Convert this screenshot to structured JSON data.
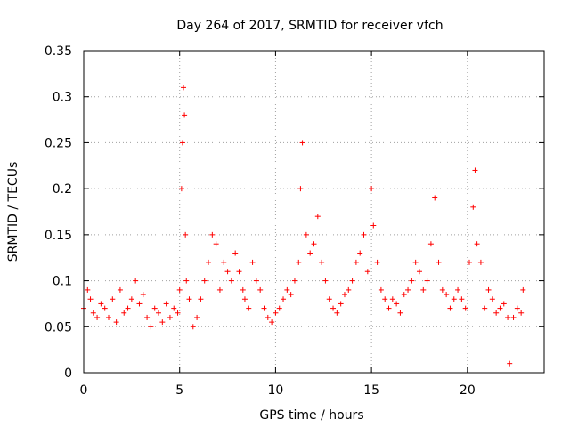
{
  "chart_data": {
    "type": "scatter",
    "title": "Day 264 of 2017, SRMTID for receiver vfch",
    "xlabel": "GPS time / hours",
    "ylabel": "SRMTID / TECUs",
    "xlim": [
      0,
      24
    ],
    "ylim": [
      0,
      0.35
    ],
    "xticks": [
      0,
      5,
      10,
      15,
      20
    ],
    "xtick_labels": [
      "0",
      "5",
      "10",
      "15",
      "20"
    ],
    "yticks": [
      0,
      0.05,
      0.1,
      0.15,
      0.2,
      0.25,
      0.3,
      0.35
    ],
    "ytick_labels": [
      "0",
      "0.05",
      "0.1",
      "0.15",
      "0.2",
      "0.25",
      "0.3",
      "0.35"
    ],
    "grid": true,
    "marker": "plus",
    "color": "#ff0000",
    "series": [
      {
        "name": "SRMTID",
        "x": [
          0.0,
          0.2,
          0.35,
          0.5,
          0.7,
          0.9,
          1.1,
          1.3,
          1.5,
          1.7,
          1.9,
          2.1,
          2.3,
          2.5,
          2.7,
          2.9,
          3.1,
          3.3,
          3.5,
          3.7,
          3.9,
          4.1,
          4.3,
          4.5,
          4.7,
          4.9,
          5.0,
          5.1,
          5.15,
          5.2,
          5.25,
          5.3,
          5.35,
          5.5,
          5.7,
          5.9,
          6.1,
          6.3,
          6.5,
          6.7,
          6.9,
          7.1,
          7.3,
          7.5,
          7.7,
          7.9,
          8.1,
          8.3,
          8.4,
          8.6,
          8.8,
          9.0,
          9.2,
          9.4,
          9.6,
          9.8,
          10.0,
          10.2,
          10.4,
          10.6,
          10.8,
          11.0,
          11.2,
          11.3,
          11.4,
          11.6,
          11.8,
          12.0,
          12.2,
          12.4,
          12.6,
          12.8,
          13.0,
          13.2,
          13.4,
          13.6,
          13.8,
          14.0,
          14.2,
          14.4,
          14.6,
          14.8,
          15.0,
          15.1,
          15.3,
          15.5,
          15.7,
          15.9,
          16.1,
          16.3,
          16.5,
          16.7,
          16.9,
          17.1,
          17.3,
          17.5,
          17.7,
          17.9,
          18.1,
          18.3,
          18.5,
          18.7,
          18.9,
          19.1,
          19.3,
          19.5,
          19.7,
          19.9,
          20.1,
          20.3,
          20.4,
          20.5,
          20.7,
          20.9,
          21.1,
          21.3,
          21.5,
          21.7,
          21.9,
          22.1,
          22.2,
          22.4,
          22.6,
          22.8,
          22.9
        ],
        "y": [
          0.07,
          0.09,
          0.08,
          0.065,
          0.06,
          0.075,
          0.07,
          0.06,
          0.08,
          0.055,
          0.09,
          0.065,
          0.07,
          0.08,
          0.1,
          0.075,
          0.085,
          0.06,
          0.05,
          0.07,
          0.065,
          0.055,
          0.075,
          0.06,
          0.07,
          0.065,
          0.09,
          0.2,
          0.25,
          0.31,
          0.28,
          0.15,
          0.1,
          0.08,
          0.05,
          0.06,
          0.08,
          0.1,
          0.12,
          0.15,
          0.14,
          0.09,
          0.12,
          0.11,
          0.1,
          0.13,
          0.11,
          0.09,
          0.08,
          0.07,
          0.12,
          0.1,
          0.09,
          0.07,
          0.06,
          0.055,
          0.065,
          0.07,
          0.08,
          0.09,
          0.085,
          0.1,
          0.12,
          0.2,
          0.25,
          0.15,
          0.13,
          0.14,
          0.17,
          0.12,
          0.1,
          0.08,
          0.07,
          0.065,
          0.075,
          0.085,
          0.09,
          0.1,
          0.12,
          0.13,
          0.15,
          0.11,
          0.2,
          0.16,
          0.12,
          0.09,
          0.08,
          0.07,
          0.08,
          0.075,
          0.065,
          0.085,
          0.09,
          0.1,
          0.12,
          0.11,
          0.09,
          0.1,
          0.14,
          0.19,
          0.12,
          0.09,
          0.085,
          0.07,
          0.08,
          0.09,
          0.08,
          0.07,
          0.12,
          0.18,
          0.22,
          0.14,
          0.12,
          0.07,
          0.09,
          0.08,
          0.065,
          0.07,
          0.075,
          0.06,
          0.01,
          0.06,
          0.07,
          0.065,
          0.09
        ]
      }
    ]
  }
}
